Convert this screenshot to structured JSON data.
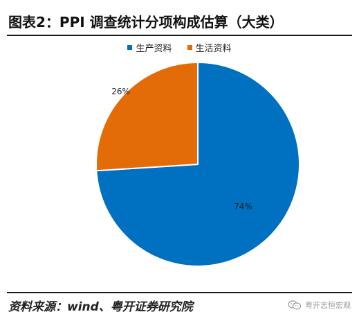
{
  "title": "图表2：PPI 调查统计分项构成估算（大类）",
  "source": "资料来源：wind、粤开证券研究院",
  "watermark": "粤开志恒宏观",
  "colors": {
    "accent_blue": "#0070C0",
    "accent_orange": "#E36C09"
  },
  "chart_data": {
    "type": "pie",
    "title": "",
    "legend_placement": "top-center",
    "start_angle_deg": 0,
    "direction": "clockwise",
    "slices": [
      {
        "label": "生产资料",
        "value": 74,
        "data_label": "74%",
        "color": "#0070C0"
      },
      {
        "label": "生活资料",
        "value": 26,
        "data_label": "26%",
        "color": "#E36C09"
      }
    ]
  }
}
